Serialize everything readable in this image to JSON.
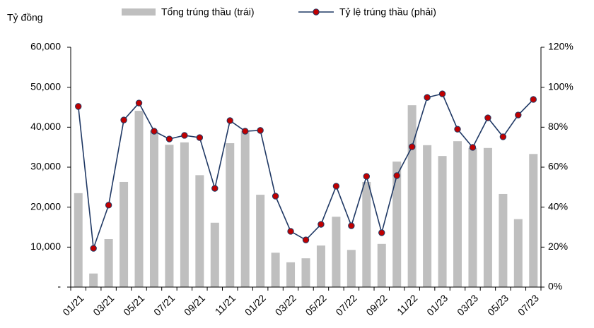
{
  "chart_data": {
    "type": "bar",
    "y_label": "Tỷ đồng",
    "categories": [
      "01/21",
      null,
      "03/21",
      null,
      "05/21",
      null,
      "07/21",
      null,
      "09/21",
      null,
      "11/21",
      null,
      "01/22",
      null,
      "03/22",
      null,
      "05/22",
      null,
      "07/22",
      null,
      "09/22",
      null,
      "11/22",
      null,
      "01/23",
      null,
      "03/23",
      null,
      "05/23",
      null,
      "07/23"
    ],
    "series": [
      {
        "name": "Tổng trúng thầu (trái)",
        "type": "bar",
        "color": "#bfbfbf",
        "values": [
          23500,
          3400,
          12000,
          26300,
          44100,
          39200,
          35600,
          36200,
          28000,
          16100,
          36000,
          39200,
          23100,
          8600,
          6200,
          7200,
          10400,
          17600,
          9300,
          26300,
          10800,
          31400,
          45500,
          35500,
          32800,
          36500,
          34800,
          34800,
          23300,
          17000,
          33300
        ]
      },
      {
        "name": "Tỷ lệ trúng thầu (phải)",
        "type": "line",
        "axis": "y2",
        "color": "#1f3864",
        "marker_color": "#c00000",
        "values": [
          90.4,
          19.4,
          41,
          83.6,
          92.1,
          78,
          74.1,
          75.9,
          74.8,
          49.4,
          83.3,
          78,
          78.4,
          45.5,
          27.9,
          23.6,
          31.4,
          50.5,
          30.7,
          55.4,
          27.2,
          55.8,
          70.2,
          94.9,
          96.7,
          79,
          69.9,
          84.7,
          75.2,
          86.1,
          93.9
        ]
      }
    ],
    "ylim": [
      0,
      60000
    ],
    "yticks": [
      {
        "value": 0,
        "label": "-"
      },
      {
        "value": 10000,
        "label": "10,000"
      },
      {
        "value": 20000,
        "label": "20,000"
      },
      {
        "value": 30000,
        "label": "30,000"
      },
      {
        "value": 40000,
        "label": "40,000"
      },
      {
        "value": 50000,
        "label": "50,000"
      },
      {
        "value": 60000,
        "label": "60,000"
      }
    ],
    "y2lim": [
      0,
      120
    ],
    "y2ticks": [
      {
        "value": 0,
        "label": "0%"
      },
      {
        "value": 20,
        "label": "20%"
      },
      {
        "value": 40,
        "label": "40%"
      },
      {
        "value": 60,
        "label": "60%"
      },
      {
        "value": 80,
        "label": "80%"
      },
      {
        "value": 100,
        "label": "100%"
      },
      {
        "value": 120,
        "label": "120%"
      }
    ],
    "legend": "top"
  }
}
